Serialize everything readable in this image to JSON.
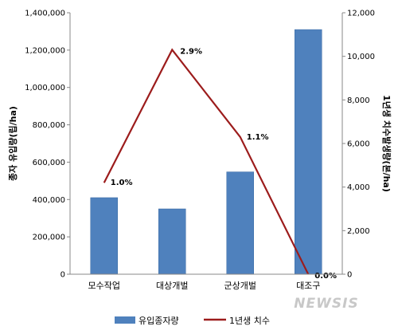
{
  "chart_data": {
    "type": "bar",
    "categories": [
      "모수작업",
      "대상개벌",
      "군상개벌",
      "대조구"
    ],
    "series": [
      {
        "name": "유입종자량",
        "type": "bar",
        "axis": "left",
        "color": "#4f81bd",
        "values": [
          410000,
          350000,
          548000,
          1310000
        ]
      },
      {
        "name": "1년생 치수",
        "type": "line",
        "axis": "right",
        "color": "#9c1c1c",
        "values": [
          4200,
          10300,
          6300,
          0
        ],
        "labels": [
          "1.0%",
          "2.9%",
          "1.1%",
          "0.0%"
        ]
      }
    ],
    "ylabel": "종자 유입량(립/ha)",
    "y2label": "1년생 치수발생량(본/ha)",
    "ylim": [
      0,
      1400000
    ],
    "y2lim": [
      0,
      12000
    ],
    "yticks": [
      "0",
      "200,000",
      "400,000",
      "600,000",
      "800,000",
      "1,000,000",
      "1,200,000",
      "1,400,000"
    ],
    "y2ticks": [
      "0",
      "2,000",
      "4,000",
      "6,000",
      "8,000",
      "10,000",
      "12,000"
    ],
    "legend_position": "bottom",
    "grid": false
  },
  "watermark": "NEWSIS"
}
